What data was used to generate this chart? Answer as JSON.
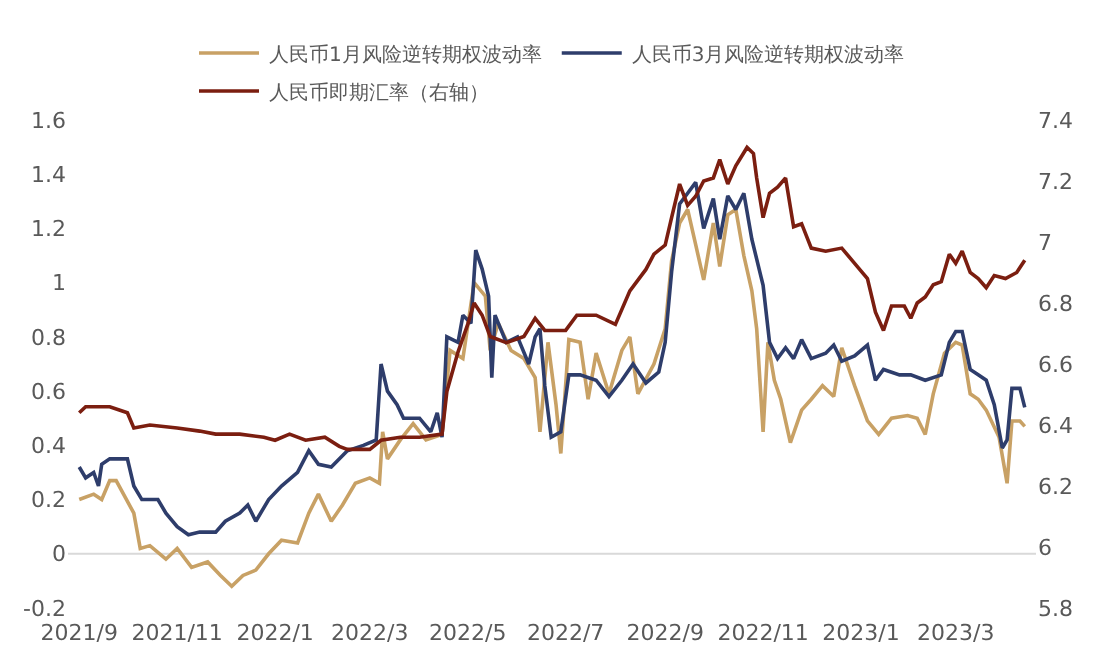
{
  "chart_data": {
    "type": "line",
    "legend": "top",
    "grid": false,
    "ref_lines": [
      {
        "axis": "y",
        "value": 0,
        "color": "#d9d9d9"
      }
    ],
    "xlim": [
      "2021-08-25",
      "2023-04-20"
    ],
    "xticks": [
      {
        "value": "2021-09-01",
        "label": "2021/9"
      },
      {
        "value": "2021-11-01",
        "label": "2021/11"
      },
      {
        "value": "2022-01-01",
        "label": "2022/1"
      },
      {
        "value": "2022-03-01",
        "label": "2022/3"
      },
      {
        "value": "2022-05-01",
        "label": "2022/5"
      },
      {
        "value": "2022-07-01",
        "label": "2022/7"
      },
      {
        "value": "2022-09-01",
        "label": "2022/9"
      },
      {
        "value": "2022-11-01",
        "label": "2022/11"
      },
      {
        "value": "2023-01-01",
        "label": "2023/1"
      },
      {
        "value": "2023-03-01",
        "label": "2023/3"
      }
    ],
    "ylim": [
      -0.2,
      1.6
    ],
    "yticks": [
      -0.2,
      0,
      0.2,
      0.4,
      0.6,
      0.8,
      1,
      1.2,
      1.4,
      1.6
    ],
    "y2lim": [
      5.8,
      7.4
    ],
    "y2ticks": [
      5.8,
      6,
      6.2,
      6.4,
      6.6,
      6.8,
      7,
      7.2,
      7.4
    ],
    "series": [
      {
        "name": "人民币1月风险逆转期权波动率",
        "color": "#c8a165",
        "x": [
          "2021-09-01",
          "2021-09-10",
          "2021-09-15",
          "2021-09-20",
          "2021-09-24",
          "2021-10-05",
          "2021-10-09",
          "2021-10-15",
          "2021-10-25",
          "2021-11-01",
          "2021-11-10",
          "2021-11-20",
          "2021-11-28",
          "2021-12-05",
          "2021-12-12",
          "2021-12-20",
          "2021-12-28",
          "2022-01-05",
          "2022-01-15",
          "2022-01-22",
          "2022-01-28",
          "2022-02-05",
          "2022-02-12",
          "2022-02-20",
          "2022-03-01",
          "2022-03-07",
          "2022-03-09",
          "2022-03-12",
          "2022-03-20",
          "2022-03-28",
          "2022-04-05",
          "2022-04-15",
          "2022-04-20",
          "2022-04-28",
          "2022-05-05",
          "2022-05-12",
          "2022-05-15",
          "2022-05-20",
          "2022-05-28",
          "2022-06-05",
          "2022-06-12",
          "2022-06-15",
          "2022-06-20",
          "2022-06-25",
          "2022-06-28",
          "2022-07-03",
          "2022-07-10",
          "2022-07-15",
          "2022-07-20",
          "2022-07-28",
          "2022-08-05",
          "2022-08-10",
          "2022-08-15",
          "2022-08-25",
          "2022-09-01",
          "2022-09-05",
          "2022-09-10",
          "2022-09-15",
          "2022-09-20",
          "2022-09-25",
          "2022-10-01",
          "2022-10-05",
          "2022-10-10",
          "2022-10-15",
          "2022-10-20",
          "2022-10-25",
          "2022-10-28",
          "2022-11-01",
          "2022-11-04",
          "2022-11-08",
          "2022-11-12",
          "2022-11-18",
          "2022-11-25",
          "2022-12-01",
          "2022-12-08",
          "2022-12-15",
          "2022-12-20",
          "2022-12-28",
          "2023-01-05",
          "2023-01-12",
          "2023-01-20",
          "2023-01-30",
          "2023-02-05",
          "2023-02-10",
          "2023-02-15",
          "2023-02-22",
          "2023-03-01",
          "2023-03-05",
          "2023-03-10",
          "2023-03-15",
          "2023-03-20",
          "2023-03-28",
          "2023-04-02",
          "2023-04-05",
          "2023-04-10",
          "2023-04-13"
        ],
        "values": [
          0.2,
          0.22,
          0.2,
          0.27,
          0.27,
          0.15,
          0.02,
          0.03,
          -0.02,
          0.02,
          -0.05,
          -0.03,
          -0.08,
          -0.12,
          -0.08,
          -0.06,
          0.0,
          0.05,
          0.04,
          0.15,
          0.22,
          0.12,
          0.18,
          0.26,
          0.28,
          0.26,
          0.45,
          0.35,
          0.42,
          0.48,
          0.42,
          0.44,
          0.75,
          0.72,
          1.0,
          0.95,
          0.75,
          0.85,
          0.75,
          0.72,
          0.65,
          0.45,
          0.78,
          0.55,
          0.37,
          0.79,
          0.78,
          0.57,
          0.74,
          0.59,
          0.75,
          0.8,
          0.59,
          0.7,
          0.83,
          1.08,
          1.22,
          1.27,
          1.14,
          1.01,
          1.22,
          1.06,
          1.25,
          1.27,
          1.1,
          0.97,
          0.83,
          0.45,
          0.78,
          0.64,
          0.57,
          0.41,
          0.53,
          0.57,
          0.62,
          0.58,
          0.76,
          0.62,
          0.49,
          0.44,
          0.5,
          0.51,
          0.5,
          0.44,
          0.59,
          0.74,
          0.78,
          0.77,
          0.59,
          0.57,
          0.53,
          0.43,
          0.26,
          0.49,
          0.49,
          0.47
        ]
      },
      {
        "name": "人民币3月风险逆转期权波动率",
        "color": "#2e3d6b",
        "x": [
          "2021-09-01",
          "2021-09-05",
          "2021-09-10",
          "2021-09-13",
          "2021-09-15",
          "2021-09-20",
          "2021-10-01",
          "2021-10-05",
          "2021-10-10",
          "2021-10-20",
          "2021-10-25",
          "2021-11-01",
          "2021-11-08",
          "2021-11-15",
          "2021-11-25",
          "2021-12-01",
          "2021-12-10",
          "2021-12-15",
          "2021-12-20",
          "2021-12-28",
          "2022-01-05",
          "2022-01-15",
          "2022-01-22",
          "2022-01-28",
          "2022-02-05",
          "2022-02-15",
          "2022-02-25",
          "2022-03-05",
          "2022-03-08",
          "2022-03-12",
          "2022-03-18",
          "2022-03-22",
          "2022-04-01",
          "2022-04-08",
          "2022-04-12",
          "2022-04-15",
          "2022-04-18",
          "2022-04-25",
          "2022-04-28",
          "2022-05-03",
          "2022-05-06",
          "2022-05-10",
          "2022-05-14",
          "2022-05-16",
          "2022-05-18",
          "2022-05-25",
          "2022-06-01",
          "2022-06-08",
          "2022-06-12",
          "2022-06-15",
          "2022-06-18",
          "2022-06-22",
          "2022-06-28",
          "2022-07-03",
          "2022-07-10",
          "2022-07-20",
          "2022-07-28",
          "2022-08-05",
          "2022-08-12",
          "2022-08-20",
          "2022-08-28",
          "2022-09-01",
          "2022-09-05",
          "2022-09-10",
          "2022-09-15",
          "2022-09-20",
          "2022-09-25",
          "2022-10-01",
          "2022-10-05",
          "2022-10-10",
          "2022-10-15",
          "2022-10-20",
          "2022-10-25",
          "2022-11-01",
          "2022-11-05",
          "2022-11-10",
          "2022-11-15",
          "2022-11-20",
          "2022-11-25",
          "2022-12-01",
          "2022-12-10",
          "2022-12-15",
          "2022-12-20",
          "2022-12-28",
          "2023-01-05",
          "2023-01-10",
          "2023-01-15",
          "2023-01-25",
          "2023-02-01",
          "2023-02-10",
          "2023-02-20",
          "2023-02-25",
          "2023-03-01",
          "2023-03-05",
          "2023-03-10",
          "2023-03-15",
          "2023-03-20",
          "2023-03-25",
          "2023-03-30",
          "2023-04-02",
          "2023-04-05",
          "2023-04-10",
          "2023-04-13"
        ],
        "values": [
          0.32,
          0.28,
          0.3,
          0.25,
          0.33,
          0.35,
          0.35,
          0.25,
          0.2,
          0.2,
          0.15,
          0.1,
          0.07,
          0.08,
          0.08,
          0.12,
          0.15,
          0.18,
          0.12,
          0.2,
          0.25,
          0.3,
          0.38,
          0.33,
          0.32,
          0.38,
          0.4,
          0.42,
          0.7,
          0.6,
          0.55,
          0.5,
          0.5,
          0.45,
          0.52,
          0.43,
          0.8,
          0.78,
          0.88,
          0.85,
          1.12,
          1.05,
          0.95,
          0.65,
          0.88,
          0.78,
          0.8,
          0.7,
          0.8,
          0.83,
          0.62,
          0.43,
          0.45,
          0.66,
          0.66,
          0.64,
          0.58,
          0.64,
          0.7,
          0.63,
          0.67,
          0.78,
          1.04,
          1.29,
          1.33,
          1.37,
          1.2,
          1.31,
          1.16,
          1.32,
          1.27,
          1.33,
          1.16,
          0.99,
          0.78,
          0.72,
          0.76,
          0.72,
          0.79,
          0.72,
          0.74,
          0.77,
          0.71,
          0.73,
          0.77,
          0.64,
          0.68,
          0.66,
          0.66,
          0.64,
          0.66,
          0.78,
          0.82,
          0.82,
          0.68,
          0.66,
          0.64,
          0.55,
          0.39,
          0.42,
          0.61,
          0.61,
          0.54
        ]
      },
      {
        "name": "人民币即期汇率（右轴）",
        "color": "#7b1e10",
        "axis": "y2",
        "x": [
          "2021-09-01",
          "2021-09-05",
          "2021-09-20",
          "2021-10-01",
          "2021-10-05",
          "2021-10-15",
          "2021-11-01",
          "2021-11-15",
          "2021-11-25",
          "2021-12-10",
          "2021-12-25",
          "2022-01-01",
          "2022-01-10",
          "2022-01-20",
          "2022-02-01",
          "2022-02-10",
          "2022-02-15",
          "2022-03-01",
          "2022-03-08",
          "2022-03-20",
          "2022-04-01",
          "2022-04-15",
          "2022-04-18",
          "2022-04-25",
          "2022-05-01",
          "2022-05-05",
          "2022-05-10",
          "2022-05-15",
          "2022-05-25",
          "2022-06-05",
          "2022-06-12",
          "2022-06-18",
          "2022-07-01",
          "2022-07-08",
          "2022-07-20",
          "2022-08-01",
          "2022-08-10",
          "2022-08-20",
          "2022-08-25",
          "2022-09-01",
          "2022-09-05",
          "2022-09-10",
          "2022-09-15",
          "2022-09-20",
          "2022-09-25",
          "2022-10-01",
          "2022-10-05",
          "2022-10-10",
          "2022-10-15",
          "2022-10-22",
          "2022-10-26",
          "2022-10-28",
          "2022-11-01",
          "2022-11-05",
          "2022-11-10",
          "2022-11-15",
          "2022-11-20",
          "2022-11-25",
          "2022-12-01",
          "2022-12-10",
          "2022-12-20",
          "2022-12-28",
          "2023-01-05",
          "2023-01-10",
          "2023-01-15",
          "2023-01-20",
          "2023-01-28",
          "2023-02-01",
          "2023-02-05",
          "2023-02-10",
          "2023-02-15",
          "2023-02-20",
          "2023-02-25",
          "2023-03-01",
          "2023-03-05",
          "2023-03-10",
          "2023-03-15",
          "2023-03-20",
          "2023-03-25",
          "2023-04-01",
          "2023-04-08",
          "2023-04-13"
        ],
        "values": [
          6.44,
          6.46,
          6.46,
          6.44,
          6.39,
          6.4,
          6.39,
          6.38,
          6.37,
          6.37,
          6.36,
          6.35,
          6.37,
          6.35,
          6.36,
          6.33,
          6.32,
          6.32,
          6.35,
          6.36,
          6.36,
          6.37,
          6.51,
          6.64,
          6.73,
          6.8,
          6.76,
          6.69,
          6.67,
          6.69,
          6.75,
          6.71,
          6.71,
          6.76,
          6.76,
          6.73,
          6.84,
          6.91,
          6.96,
          6.99,
          7.08,
          7.19,
          7.12,
          7.15,
          7.2,
          7.21,
          7.27,
          7.19,
          7.25,
          7.31,
          7.29,
          7.21,
          7.08,
          7.16,
          7.18,
          7.21,
          7.05,
          7.06,
          6.98,
          6.97,
          6.98,
          6.93,
          6.88,
          6.77,
          6.71,
          6.79,
          6.79,
          6.75,
          6.8,
          6.82,
          6.86,
          6.87,
          6.96,
          6.93,
          6.97,
          6.9,
          6.88,
          6.85,
          6.89,
          6.88,
          6.9,
          6.94
        ]
      }
    ]
  }
}
